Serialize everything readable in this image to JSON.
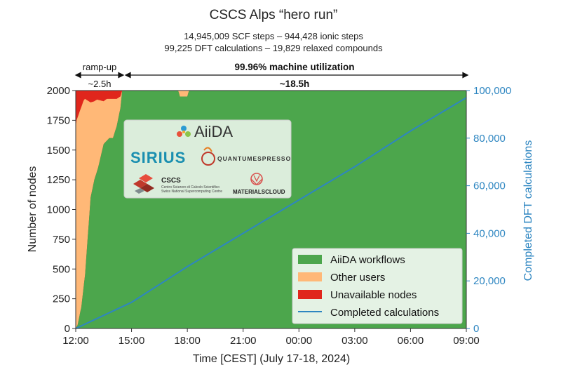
{
  "header": {
    "title": "CSCS Alps “hero run”",
    "subtitle_line1": "14,945,009 SCF steps – 944,428 ionic steps",
    "subtitle_line2": "99,225 DFT calculations – 19,829 relaxed compounds"
  },
  "annotations": {
    "rampup_label": "ramp-up",
    "rampup_duration": "~2.5h",
    "utilization_label": "99.96% machine utilization",
    "run_duration": "~18.5h"
  },
  "logos": {
    "aiida": "AiiDA",
    "sirius": "SIRIUS",
    "quantum_espresso": "QUANTUMESPRESSO",
    "cscs": "CSCS",
    "cscs_line1": "Centro Svizzero di Calcolo Scientifico",
    "cscs_line2": "Swiss National Supercomputing Centre",
    "materials_cloud": "MATERIALSCLOUD"
  },
  "colors": {
    "aiida_workflows": "#4ca64c",
    "other_users": "#ffb877",
    "unavailable_nodes": "#e0261c",
    "completed_calculations": "#2e86c1"
  },
  "chart_data": {
    "type": "area",
    "xlabel": "Time [CEST] (July 17-18, 2024)",
    "ylabel": "Number of nodes",
    "ylabel_right": "Completed DFT calculations",
    "x_ticks": [
      "12:00",
      "15:00",
      "18:00",
      "21:00",
      "00:00",
      "03:00",
      "06:00",
      "09:00"
    ],
    "x_range_hours": [
      0,
      21
    ],
    "ylim": [
      0,
      2000
    ],
    "yticks": [
      0,
      250,
      500,
      750,
      1000,
      1250,
      1500,
      1750,
      2000
    ],
    "ylim_right": [
      0,
      100000
    ],
    "yticks_right": [
      "0",
      "20,000",
      "40,000",
      "60,000",
      "80,000",
      "100,000"
    ],
    "yticks_right_values": [
      0,
      20000,
      40000,
      60000,
      80000,
      100000
    ],
    "total_nodes": 2030,
    "legend_position": "lower-right",
    "series": [
      {
        "name": "AiiDA workflows",
        "kind": "area",
        "x_hours": [
          0,
          0.1,
          0.3,
          0.5,
          0.8,
          1.0,
          1.2,
          1.5,
          1.8,
          2.0,
          2.2,
          2.4,
          2.5,
          21
        ],
        "values": [
          0,
          30,
          180,
          450,
          1100,
          1250,
          1350,
          1550,
          1600,
          1600,
          1700,
          1850,
          2000,
          2000
        ]
      },
      {
        "name": "Other users",
        "kind": "area",
        "x_hours": [
          0,
          0.1,
          0.3,
          0.5,
          0.8,
          1.0,
          1.2,
          1.5,
          1.8,
          2.0,
          2.2,
          2.4,
          2.5,
          21
        ],
        "values": [
          1700,
          1780,
          1720,
          1480,
          800,
          660,
          580,
          380,
          330,
          330,
          230,
          100,
          0,
          0
        ]
      },
      {
        "name": "Unavailable nodes",
        "kind": "area",
        "x_hours": [
          0,
          0.5,
          1.0,
          1.5,
          2.0,
          2.5,
          3.0,
          5.5,
          5.6,
          6.0,
          6.1,
          21
        ],
        "values": [
          300,
          80,
          100,
          120,
          60,
          30,
          20,
          20,
          80,
          80,
          20,
          20
        ]
      },
      {
        "name": "Completed calculations",
        "kind": "line",
        "axis": "right",
        "x_hours": [
          0,
          3,
          6,
          9,
          12,
          15,
          18,
          21
        ],
        "values": [
          0,
          11000,
          26000,
          40000,
          54000,
          68000,
          83000,
          97000
        ]
      }
    ]
  }
}
